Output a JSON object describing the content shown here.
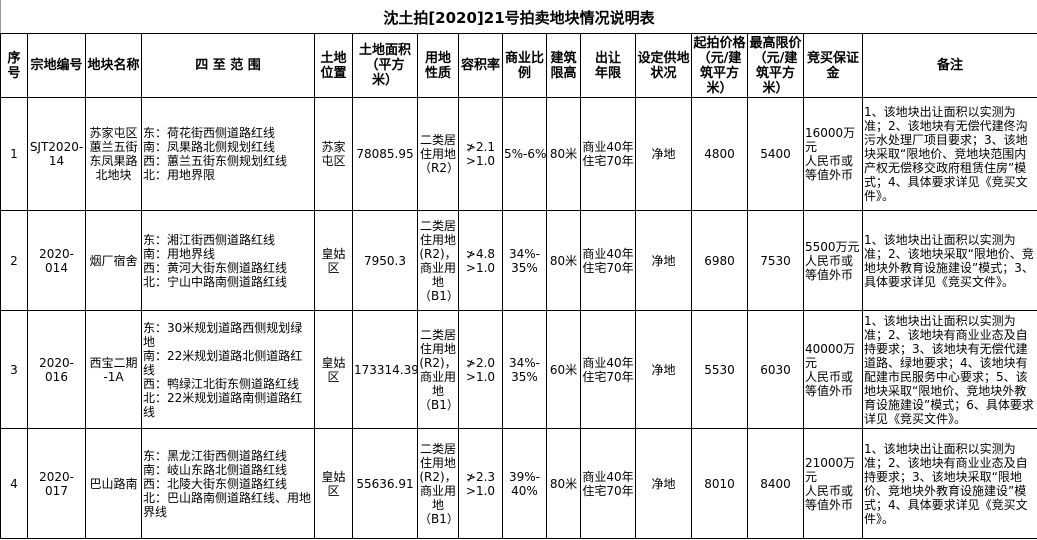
{
  "title": "沈土拍[2020]21号拍卖地块情况说明表",
  "headers": [
    "序\n号",
    "宗地编号",
    "地块名称",
    "四 至 范 围",
    "土地\n位置",
    "土地面积\n（平方\n米）",
    "用地\n性质",
    "容积率",
    "商业比\n例",
    "建筑\n限高",
    "出让\n年限",
    "设定供地\n状况",
    "起拍价格\n（元/建\n筑平方\n米）",
    "最高限价\n（元/建\n筑平方\n米）",
    "竞买保证\n金",
    "备注"
  ],
  "rows": [
    [
      "1",
      "SJT2020-\n14",
      "苏家屯区\n蕙兰五街\n东凤果路\n北地块",
      "东：荷花街西侧道路红线\n南：凤果路北侧规划红线\n西：蕙兰五街东侧规划红线\n北：用地界限",
      "苏家\n屯区",
      "78085.95",
      "二类居\n住用地\n（R2）",
      "≯2.1\n>1.0",
      "5%-6%",
      "80米",
      "商业40年\n住宅70年",
      "净地",
      "4800",
      "5400",
      "16000万元\n人民币或\n等值外币",
      "1、该地块出让面积以实测为准；2、该地块有无偿代建佟沟污水处理厂项目要求；3、该地块采取“限地价、竞地块范围内产权无偿移交政府租赁住房”模式；4、具体要求详见《竞买文件》。"
    ],
    [
      "2",
      "2020-014",
      "烟厂宿舍",
      "东：湘江街西侧道路红线\n南：用地界线\n西：黄河大街东侧道路红线\n北：宁山中路南侧道路红线",
      "皇姑\n区",
      "7950.3",
      "二类居\n住用地\n(R2)，\n商业用\n地\n（B1）",
      "≯4.8\n>1.0",
      "34%-\n35%",
      "80米",
      "商业40年\n住宅70年",
      "净地",
      "6980",
      "7530",
      "5500万元\n人民币或\n等值外币",
      "1、该地块出让面积以实测为准；2、该地块采取“限地价、竞地块外教育设施建设”模式；3、具体要求详见《竞买文件》。"
    ],
    [
      "3",
      "2020-016",
      "西宝二期\n-1A",
      "东：30米规划道路西侧规划绿地\n南：22米规划道路北侧道路红线\n西：鸭绿江北街东侧道路红线\n北：22米规划道路南侧道路红线",
      "皇姑\n区",
      "173314.39",
      "二类居\n住用地\n(R2)，\n商业用\n地\n（B1）",
      "≯2.0\n>1.0",
      "34%-\n35%",
      "60米",
      "商业40年\n住宅70年",
      "净地",
      "5530",
      "6030",
      "40000万元\n人民币或\n等值外币",
      "1、该地块出让面积以实测为准；2、该地块有商业业态及自持要求；3、该地块有无偿代建道路、绿地要求；4、该地块有配建市民服务中心要求；5、该地块采取“限地价、竞地块外教育设施建设”模式；6、具体要求详见《竞买文件》。"
    ],
    [
      "4",
      "2020-017",
      "巴山路南",
      "东：黑龙江街西侧道路红线\n南：岐山东路北侧道路红线\n西：北陵大街东侧道路红线\n北：巴山路南侧道路红线、用地界线",
      "皇姑\n区",
      "55636.91",
      "二类居\n住用地\n(R2)，\n商业用\n地\n（B1）",
      "≯2.3\n>1.0",
      "39%-\n40%",
      "80米",
      "商业40年\n住宅70年",
      "净地",
      "8010",
      "8400",
      "21000万元\n人民币或\n等值外币",
      "1、该地块出让面积以实测为准；2、该地块有商业业态及自持要求；3、该地块采取“限地价、竞地块外教育设施建设”模式；4、具体要求详见《竞买文件》。"
    ]
  ]
}
